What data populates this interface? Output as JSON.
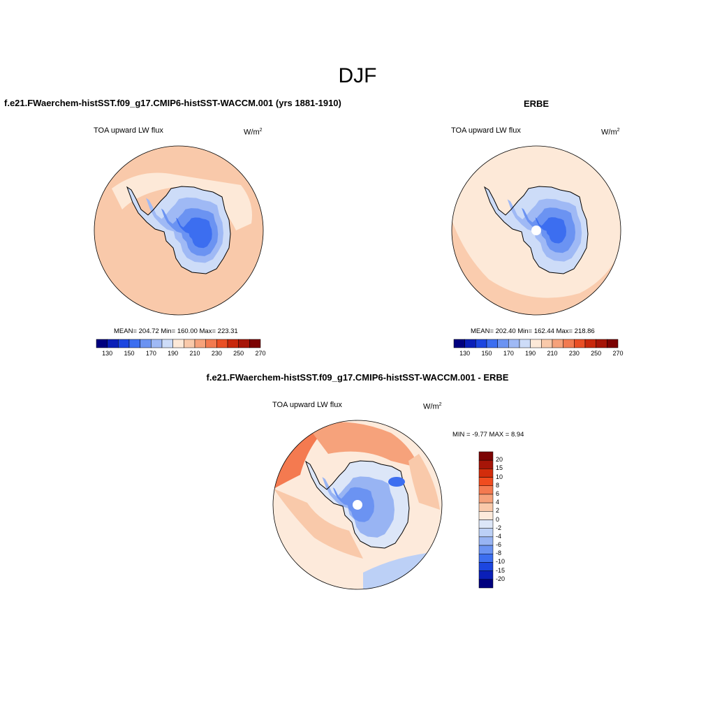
{
  "figure": {
    "season": "DJF"
  },
  "panels": [
    {
      "title": "f.e21.FWaerchem-histSST.f09_g17.CMIP6-histSST-WACCM.001 (yrs 1881-1910)",
      "variable": "TOA upward LW flux",
      "units_base": "W/m",
      "units_exp": "2",
      "stats": "MEAN= 204.72  Min= 160.00  Max= 223.31"
    },
    {
      "title": "ERBE",
      "variable": "TOA upward LW flux",
      "units_base": "W/m",
      "units_exp": "2",
      "stats": "MEAN= 202.40  Min= 162.44  Max= 218.86"
    },
    {
      "title": "f.e21.FWaerchem-histSST.f09_g17.CMIP6-histSST-WACCM.001 - ERBE",
      "variable": "TOA upward LW flux",
      "units_base": "W/m",
      "units_exp": "2",
      "stats": "MIN =  -9.77 MAX =   8.94"
    }
  ],
  "colorbar_abs": {
    "colors": [
      "#00007f",
      "#0a1fb8",
      "#1c46e0",
      "#3c6ef0",
      "#6b93f2",
      "#9fb9f5",
      "#cddcf8",
      "#fde9d8",
      "#f9c9aa",
      "#f6a27b",
      "#f27a50",
      "#ea4f25",
      "#c8280c",
      "#a61508",
      "#7c0303"
    ],
    "tick_labels": [
      "130",
      "150",
      "170",
      "190",
      "210",
      "230",
      "250",
      "270"
    ]
  },
  "colorbar_diff": {
    "colors": [
      "#7c0303",
      "#a61508",
      "#d22d0c",
      "#f04c1f",
      "#f47a50",
      "#f6a27b",
      "#f9c9aa",
      "#fdeadb",
      "#dce6f8",
      "#bcd0f6",
      "#98b4f3",
      "#6b93f2",
      "#3c6ef0",
      "#1c46e0",
      "#0a1fb8",
      "#00007f"
    ],
    "labels": [
      "20",
      "15",
      "10",
      "8",
      "6",
      "4",
      "2",
      "0",
      "-2",
      "-4",
      "-6",
      "-8",
      "-10",
      "-15",
      "-20"
    ]
  },
  "map_fields": {
    "panel_1": {
      "ocean": "#f9c9aa",
      "outer_ring": "#fde9d8",
      "ice": [
        "#cddcf8",
        "#9fb9f5",
        "#6b93f2",
        "#3c6ef0"
      ]
    },
    "panel_2": {
      "ocean": "#fde9d8",
      "outer_ring": "#f9c9aa",
      "ice": [
        "#cddcf8",
        "#9fb9f5",
        "#6b93f2",
        "#3c6ef0"
      ]
    },
    "panel_3": {
      "ocean": "#fdeadb",
      "warm": [
        "#f9c9aa",
        "#f6a27b",
        "#f47a50"
      ],
      "cool": [
        "#dce6f8",
        "#bcd0f6",
        "#98b4f3",
        "#6b93f2",
        "#3c6ef0"
      ]
    }
  }
}
